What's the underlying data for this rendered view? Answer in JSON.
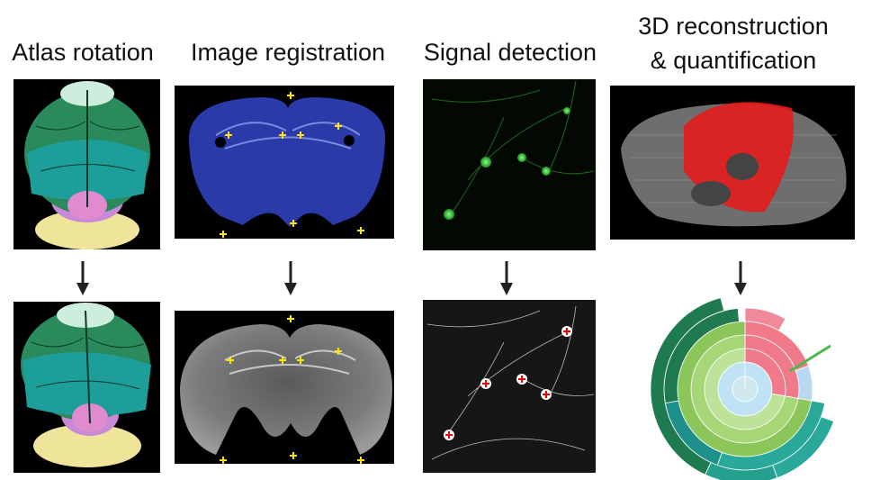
{
  "panels": [
    {
      "title_lines": [
        "Atlas rotation"
      ]
    },
    {
      "title_lines": [
        "Image registration"
      ]
    },
    {
      "title_lines": [
        "Signal detection"
      ]
    },
    {
      "title_lines": [
        "3D reconstruction",
        "& quantification"
      ]
    }
  ]
}
